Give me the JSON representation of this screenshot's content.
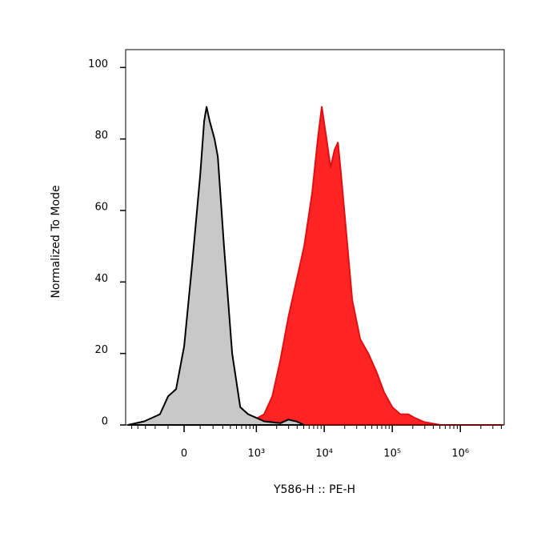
{
  "chart_data": {
    "type": "histogram-overlay",
    "x_label": "Y586-H :: PE-H",
    "y_label": "Normalized To Mode",
    "xscale": "biexponential",
    "xlim": [
      -620,
      4400000
    ],
    "ylim": [
      0,
      105
    ],
    "yticks": [
      0,
      20,
      40,
      60,
      80,
      100
    ],
    "xticks": [
      0,
      {
        "value": 1000,
        "label": "10³"
      },
      {
        "value": 10000,
        "label": "10⁴"
      },
      {
        "value": 100000,
        "label": "10⁵"
      },
      {
        "value": 1000000,
        "label": "10⁶"
      }
    ],
    "xminorticks": [
      -500,
      -400,
      -300,
      -200,
      -100,
      100,
      200,
      300,
      400,
      500,
      600,
      700,
      800,
      900,
      2000,
      3000,
      4000,
      5000,
      6000,
      7000,
      8000,
      9000,
      20000,
      30000,
      40000,
      50000,
      60000,
      70000,
      80000,
      90000,
      200000,
      300000,
      400000,
      500000,
      600000,
      700000,
      800000,
      900000,
      2000000,
      3000000,
      4000000
    ],
    "series": [
      {
        "color": "#ff2424",
        "edgecolor": "#e01010",
        "x": [
          427,
          754,
          1307,
          1720,
          2258,
          2958,
          3870,
          5075,
          6660,
          8050,
          9220,
          10800,
          12400,
          14200,
          15900,
          17700,
          20800,
          25800,
          33800,
          44400,
          58200,
          76300,
          100000,
          131000,
          172000,
          213000,
          295000,
          508000,
          1970000,
          4170000
        ],
        "values": [
          0,
          0.5,
          3,
          8,
          18,
          30,
          40,
          50,
          65,
          80,
          89,
          80,
          72,
          77,
          79,
          70,
          55,
          35,
          24,
          20,
          15,
          9,
          5,
          3,
          3,
          2,
          0.8,
          0,
          0,
          0
        ]
      },
      {
        "color": "#c8c8c8",
        "edgecolor": "#000000",
        "x": [
          -571,
          -315,
          -159,
          -100,
          -48,
          0,
          48,
          100,
          128,
          146,
          171,
          214,
          246,
          315,
          427,
          571,
          754,
          1000,
          1307,
          2258,
          2958,
          3870,
          5075
        ],
        "values": [
          0,
          1,
          3,
          8,
          10,
          22,
          45,
          70,
          85,
          89,
          85,
          80,
          75,
          50,
          20,
          5,
          3,
          2,
          1,
          0.5,
          1.5,
          1,
          0
        ]
      }
    ]
  }
}
